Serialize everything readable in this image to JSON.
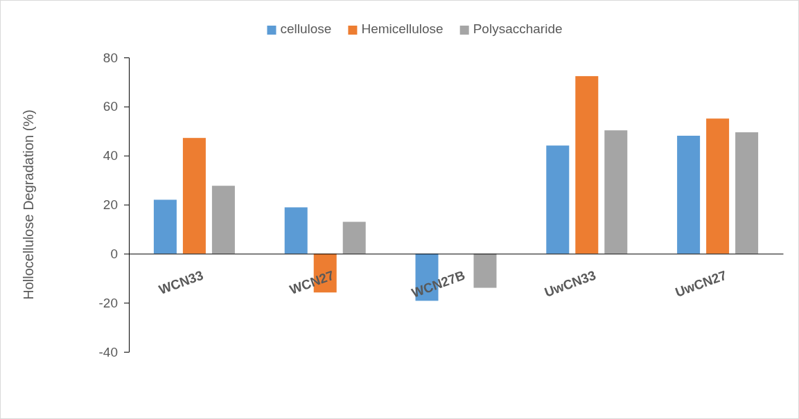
{
  "chart_data": {
    "type": "bar",
    "ylabel": "Hollocellulose Degradation (%)",
    "categories": [
      "WCN33",
      "WCN27",
      "WCN27B",
      "UwCN33",
      "UwCN27"
    ],
    "series": [
      {
        "name": "cellulose",
        "color": "#5b9bd5",
        "values": [
          22.0,
          18.9,
          -19.2,
          44.1,
          48.1
        ]
      },
      {
        "name": "Hemicellulose",
        "color": "#ed7d31",
        "values": [
          47.2,
          -15.8,
          null,
          72.4,
          55.1
        ]
      },
      {
        "name": "Polysaccharide",
        "color": "#a5a5a5",
        "values": [
          27.7,
          13.0,
          -13.9,
          50.3,
          49.5
        ]
      }
    ],
    "ylim": [
      -40,
      80
    ],
    "yticks": [
      -40,
      -20,
      0,
      20,
      40,
      60,
      80
    ],
    "grid": false,
    "legend": "top"
  }
}
